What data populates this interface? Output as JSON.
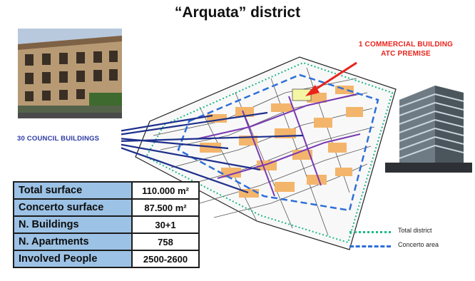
{
  "title": "“Arquata” district",
  "annotations": {
    "commercial_line1": "1 COMMERCIAL BUILDING",
    "commercial_line2": "ATC PREMISE",
    "council": "30 COUNCIL BUILDINGS"
  },
  "stats_table": {
    "rows": [
      {
        "label": "Total surface",
        "value": "110.000 m²"
      },
      {
        "label": "Concerto surface",
        "value": "87.500 m²"
      },
      {
        "label": "N. Buildings",
        "value": "30+1"
      },
      {
        "label": "N. Apartments",
        "value": "758"
      },
      {
        "label": "Involved People",
        "value": "2500-2600"
      }
    ]
  },
  "legend": {
    "items": [
      {
        "label": "Total district",
        "style": "dotted",
        "color": "#1db88a"
      },
      {
        "label": "Concerto area",
        "style": "dashed",
        "color": "#2e6fd8"
      }
    ]
  },
  "colors": {
    "annotation_red": "#e8231c",
    "annotation_blue": "#2b39a3",
    "table_label_bg": "#9cc2e5",
    "map_fill": "#f3b56b",
    "connector_lines": "#1e2f8c"
  }
}
